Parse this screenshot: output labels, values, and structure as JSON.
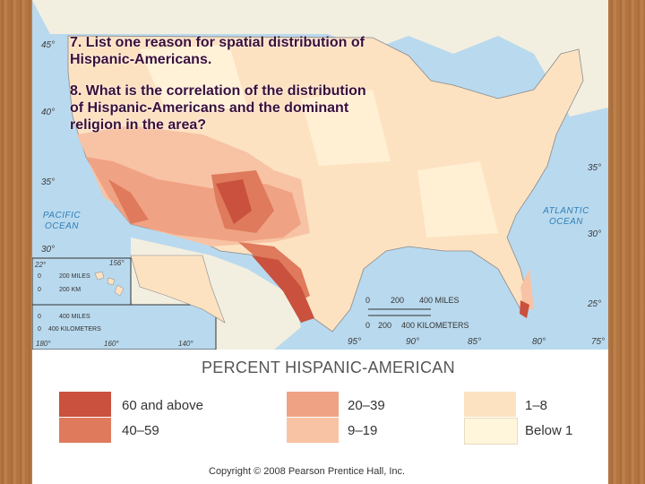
{
  "questions": {
    "q7": "7. List one reason for spatial distribution of Hispanic-Americans.",
    "q8": "8.  What is the correlation of the distribution of Hispanic-Americans and the dominant religion in the area?"
  },
  "map": {
    "latitudes": [
      "45°",
      "40°",
      "35°",
      "30°",
      "35°",
      "30°",
      "25°"
    ],
    "longitudes": [
      "95°",
      "90°",
      "85°",
      "80°",
      "75°"
    ],
    "inset_labels": [
      "22°",
      "156°",
      "160°",
      "180°",
      "140°"
    ],
    "oceans": {
      "pacific": "PACIFIC OCEAN",
      "atlantic": "ATLANTIC OCEAN"
    },
    "scale": {
      "miles": [
        "0",
        "200",
        "400 MILES"
      ],
      "km": [
        "0",
        "200",
        "400 KILOMETERS"
      ]
    },
    "inset_scale": {
      "hawaii_miles": [
        "0",
        "200 MILES"
      ],
      "hawaii_km": [
        "0",
        "200 KM"
      ],
      "alaska_miles": [
        "0",
        "400 MILES"
      ],
      "alaska_km": [
        "0",
        "400 KILOMETERS"
      ]
    }
  },
  "legend": {
    "title": "PERCENT HISPANIC-AMERICAN",
    "items": [
      {
        "label": "60 and above",
        "color": "#c9513e"
      },
      {
        "label": "40–59",
        "color": "#df7a5c"
      },
      {
        "label": "20–39",
        "color": "#f0a384"
      },
      {
        "label": "9–19",
        "color": "#f7c3a4"
      },
      {
        "label": "1–8",
        "color": "#fde2c2"
      },
      {
        "label": "Below 1",
        "color": "#fff6dc"
      }
    ]
  },
  "copyright": "Copyright © 2008 Pearson Prentice Hall, Inc."
}
